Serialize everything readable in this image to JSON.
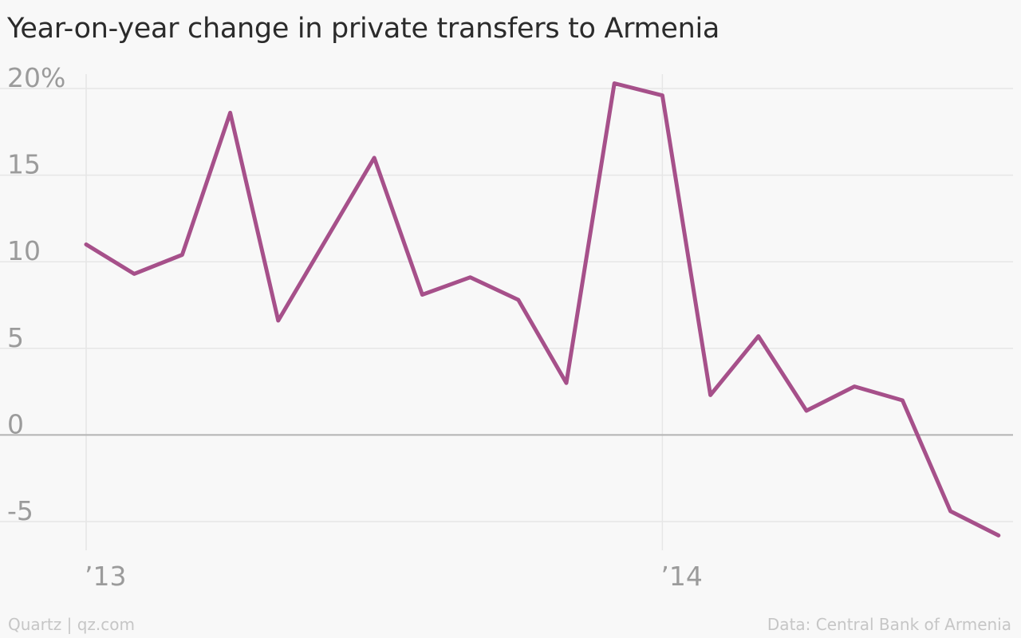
{
  "title": "Year-on-year change in private transfers to Armenia",
  "footer": {
    "credit": "Quartz | qz.com",
    "source": "Data: Central Bank of Armenia"
  },
  "colors": {
    "line": "#a6508a",
    "grid": "#e6e6e6",
    "zero_line": "#b3b3b3",
    "tick_label": "#9b9b9b",
    "background": "#f8f8f8"
  },
  "chart_data": {
    "type": "line",
    "title": "Year-on-year change in private transfers to Armenia",
    "xlabel": "",
    "ylabel": "",
    "x_ticks": [
      {
        "index": 0,
        "label": "’13"
      },
      {
        "index": 12,
        "label": "’14"
      }
    ],
    "y_ticks": [
      {
        "value": 20,
        "label": "20%"
      },
      {
        "value": 15,
        "label": "15"
      },
      {
        "value": 10,
        "label": "10"
      },
      {
        "value": 5,
        "label": "5"
      },
      {
        "value": 0,
        "label": "0"
      },
      {
        "value": -5,
        "label": "-5"
      }
    ],
    "ylim": [
      -5,
      20
    ],
    "grid": true,
    "series": [
      {
        "values": [
          11.0,
          9.3,
          10.4,
          18.6,
          6.6,
          11.3,
          16.0,
          8.1,
          9.1,
          7.8,
          3.0,
          20.3,
          19.6,
          2.3,
          5.7,
          1.4,
          2.8,
          2.0,
          -4.4,
          -5.8
        ]
      }
    ]
  }
}
